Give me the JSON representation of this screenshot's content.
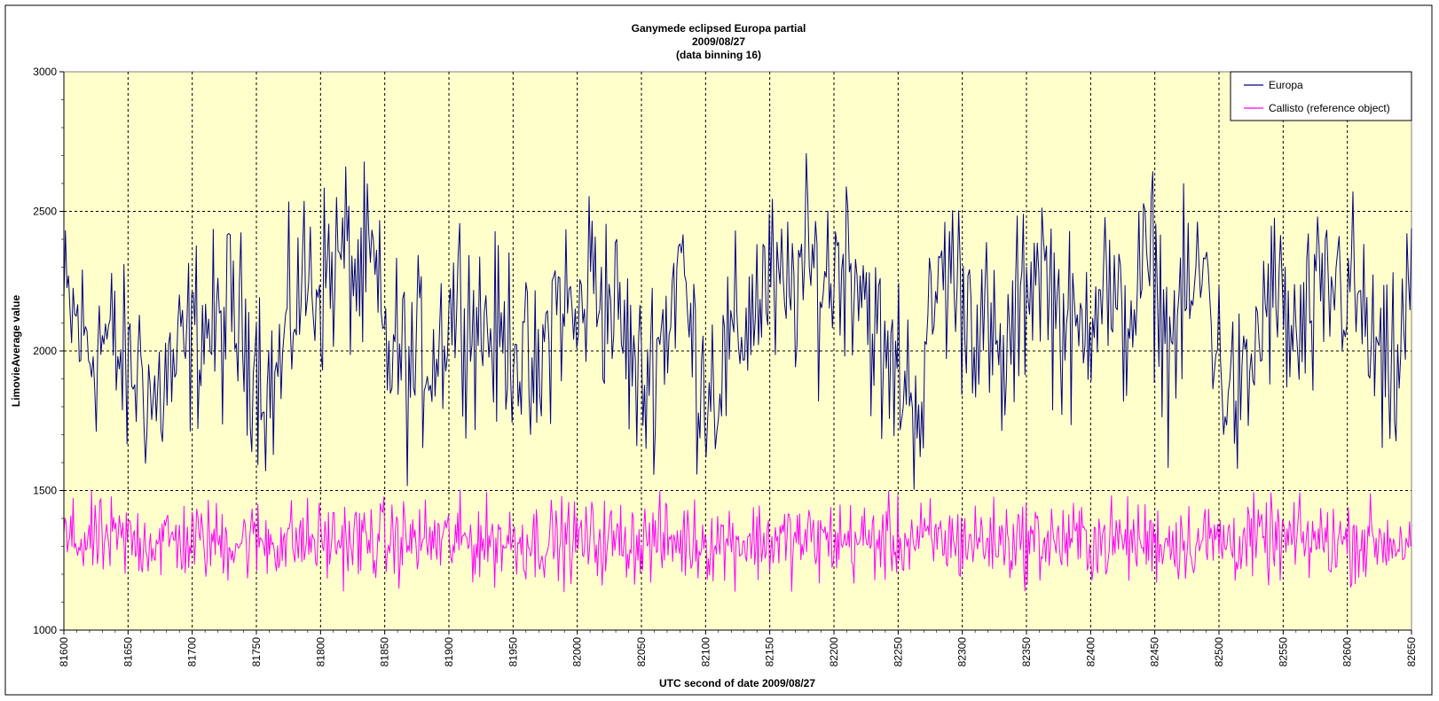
{
  "chart_data": {
    "type": "line",
    "title": [
      "Ganymede eclipsed Europa partial",
      "2009/08/27",
      "(data binning 16)"
    ],
    "xlabel": "UTC second of date 2009/08/27",
    "ylabel": "LimovieAverage value",
    "xlim": [
      81600,
      82650
    ],
    "ylim": [
      1000,
      3000
    ],
    "x_ticks": [
      "81600",
      "81650",
      "81700",
      "81750",
      "81800",
      "81850",
      "81900",
      "81950",
      "82000",
      "82050",
      "82100",
      "82150",
      "82200",
      "82250",
      "82300",
      "82350",
      "82400",
      "82450",
      "82500",
      "82550",
      "82600",
      "82650"
    ],
    "y_ticks": [
      "1000",
      "1500",
      "2000",
      "2500",
      "3000"
    ],
    "grid": true,
    "legend_position": "top-right",
    "plot_background": "#ffffcc",
    "series": [
      {
        "name": "Europa",
        "color": "#000080",
        "x": [
          81600,
          81610,
          81620,
          81630,
          81640,
          81650,
          81660,
          81670,
          81680,
          81690,
          81700,
          81710,
          81720,
          81730,
          81740,
          81750,
          81760,
          81770,
          81780,
          81790,
          81800,
          81810,
          81820,
          81830,
          81840,
          81850,
          81860,
          81870,
          81880,
          81890,
          81900,
          81910,
          81920,
          81930,
          81940,
          81950,
          81960,
          81970,
          81980,
          81990,
          82000,
          82010,
          82020,
          82030,
          82040,
          82050,
          82060,
          82070,
          82080,
          82090,
          82100,
          82110,
          82120,
          82130,
          82140,
          82150,
          82160,
          82170,
          82180,
          82190,
          82200,
          82210,
          82220,
          82230,
          82240,
          82250,
          82260,
          82270,
          82280,
          82290,
          82300,
          82310,
          82320,
          82330,
          82340,
          82350,
          82360,
          82370,
          82380,
          82390,
          82400,
          82410,
          82420,
          82430,
          82440,
          82450,
          82460,
          82470,
          82480,
          82490,
          82500,
          82510,
          82520,
          82530,
          82540,
          82550,
          82560,
          82570,
          82580,
          82590,
          82600,
          82610,
          82620,
          82630,
          82640,
          82650
        ],
        "values": [
          2150,
          2100,
          2000,
          2050,
          2000,
          1900,
          1950,
          1800,
          1900,
          1950,
          2050,
          2100,
          2050,
          2150,
          2050,
          2000,
          1850,
          1950,
          2200,
          2250,
          2250,
          2300,
          2350,
          2250,
          2300,
          2000,
          2000,
          1900,
          2000,
          2000,
          2150,
          2200,
          2100,
          2100,
          2000,
          2100,
          1900,
          1850,
          2150,
          2200,
          2050,
          2300,
          2200,
          2150,
          2000,
          1850,
          2000,
          2100,
          2350,
          2000,
          1900,
          1900,
          2000,
          2100,
          2200,
          2250,
          2150,
          2250,
          2300,
          2250,
          2300,
          2350,
          2300,
          2100,
          1900,
          1950,
          1850,
          1850,
          2250,
          2300,
          2200,
          2150,
          2050,
          1900,
          2050,
          2250,
          2350,
          2200,
          2100,
          2000,
          2200,
          2300,
          2050,
          2150,
          2250,
          2300,
          2000,
          2150,
          2200,
          2300,
          1950,
          1850,
          1800,
          2050,
          2200,
          2150,
          2000,
          2100,
          2150,
          2250,
          2250,
          2150,
          2000,
          1850,
          1950,
          2300
        ]
      },
      {
        "name": "Callisto (reference object)",
        "color": "#ff00ff",
        "x": [
          81600,
          81650,
          81700,
          81750,
          81800,
          81850,
          81900,
          81950,
          82000,
          82050,
          82100,
          82150,
          82200,
          82250,
          82300,
          82350,
          82400,
          82450,
          82500,
          82550,
          82600,
          82650
        ],
        "values": [
          1320,
          1320,
          1320,
          1320,
          1320,
          1320,
          1320,
          1320,
          1320,
          1320,
          1320,
          1320,
          1320,
          1320,
          1320,
          1320,
          1320,
          1320,
          1320,
          1320,
          1320,
          1320
        ]
      }
    ]
  }
}
